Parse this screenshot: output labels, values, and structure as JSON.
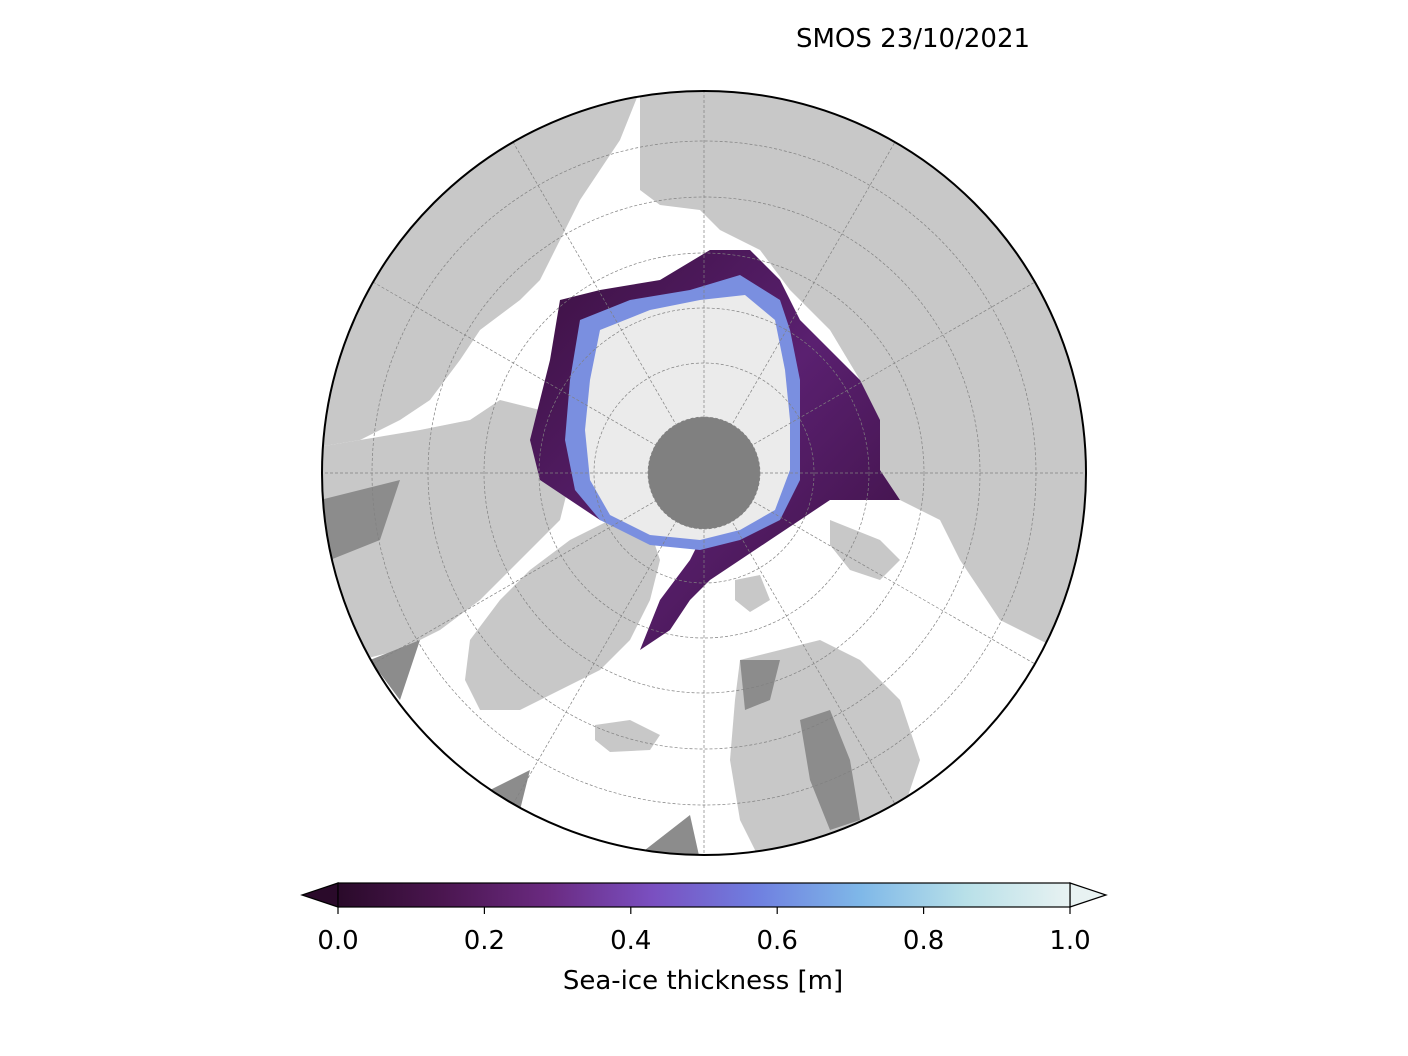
{
  "title": "SMOS 23/10/2021",
  "colorbar": {
    "label": "Sea-ice thickness [m]",
    "ticks": [
      "0.0",
      "0.2",
      "0.4",
      "0.6",
      "0.8",
      "1.0"
    ],
    "tick_values": [
      0.0,
      0.2,
      0.4,
      0.6,
      0.8,
      1.0
    ],
    "range": [
      0.0,
      1.0
    ],
    "extend": "both",
    "colormap_stops": [
      "#2a0a2a",
      "#4b1650",
      "#6a2a80",
      "#7a4fc0",
      "#6f7fe0",
      "#7fb8e8",
      "#b8e0e8",
      "#e8f2f2"
    ]
  },
  "map": {
    "projection": "north-polar-stereographic",
    "colors": {
      "land": "#c8c8c8",
      "ocean": "#ffffff",
      "pole_hole": "#808080",
      "thick_ice": "#ebebeb",
      "lakes": "#8c8c8c",
      "grid": "#808080",
      "boundary": "#000000"
    }
  }
}
